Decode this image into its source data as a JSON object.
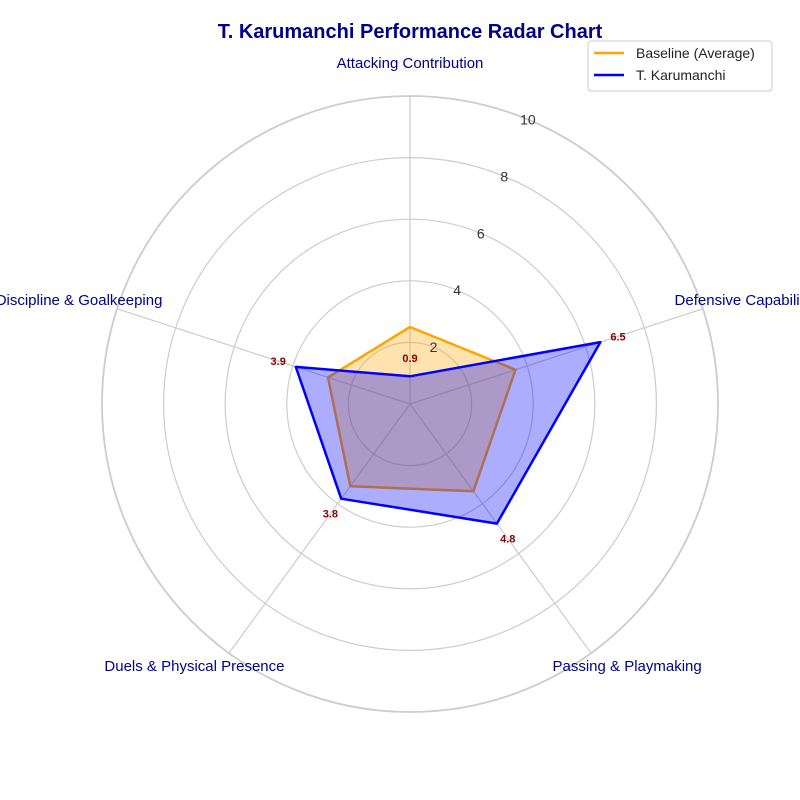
{
  "chart_data": {
    "type": "radar",
    "title": "T. Karumanchi Performance Radar Chart",
    "axes": [
      "Attacking Contribution",
      "Defensive Capability",
      "Passing & Playmaking",
      "Duels & Physical Presence",
      "Discipline & Goalkeeping"
    ],
    "rlim": [
      0,
      10
    ],
    "rticks": [
      2,
      4,
      6,
      8,
      10
    ],
    "grid": true,
    "legend_position": "top-right",
    "series": [
      {
        "name": "Baseline (Average)",
        "color": "#ffa500",
        "values": [
          2.5,
          3.6,
          3.5,
          3.3,
          2.8
        ],
        "show_labels": false
      },
      {
        "name": "T. Karumanchi",
        "color": "#0000ff",
        "values": [
          0.9,
          6.5,
          4.8,
          3.8,
          3.9
        ],
        "show_labels": true
      }
    ]
  }
}
